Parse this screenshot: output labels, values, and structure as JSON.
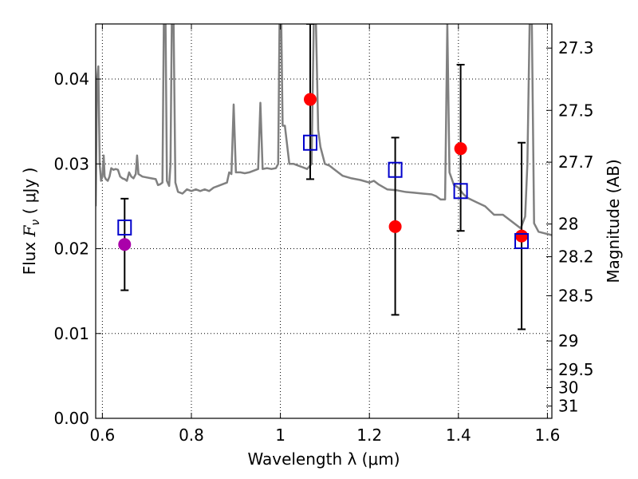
{
  "chart_data": {
    "type": "scatter",
    "xlabel": "Wavelength  λ (μm)",
    "ylabel_left": {
      "pre": "Flux  ",
      "var": "F",
      "sub": "ν",
      "post": "  ( μJy )"
    },
    "ylabel_right": "Magnitude (AB)",
    "xlim": [
      0.585,
      1.61
    ],
    "ylim": [
      0.0,
      0.0465
    ],
    "grid": true,
    "x_ticks": [
      {
        "value": 0.6,
        "label": "0.6"
      },
      {
        "value": 0.8,
        "label": "0.8"
      },
      {
        "value": 1.0,
        "label": "1"
      },
      {
        "value": 1.2,
        "label": "1.2"
      },
      {
        "value": 1.4,
        "label": "1.4"
      },
      {
        "value": 1.6,
        "label": "1.6"
      }
    ],
    "y_ticks": [
      {
        "value": 0.0,
        "label": "0.00"
      },
      {
        "value": 0.01,
        "label": "0.01"
      },
      {
        "value": 0.02,
        "label": "0.02"
      },
      {
        "value": 0.03,
        "label": "0.03"
      },
      {
        "value": 0.04,
        "label": "0.04"
      }
    ],
    "right_ticks": [
      {
        "mag": 27.3,
        "label": "27.3"
      },
      {
        "mag": 27.5,
        "label": "27.5"
      },
      {
        "mag": 27.7,
        "label": "27.7"
      },
      {
        "mag": 28.0,
        "label": "28"
      },
      {
        "mag": 28.2,
        "label": "28.2"
      },
      {
        "mag": 28.5,
        "label": "28.5"
      },
      {
        "mag": 29.0,
        "label": "29"
      },
      {
        "mag": 29.5,
        "label": "29.5"
      },
      {
        "mag": 30.0,
        "label": "30"
      },
      {
        "mag": 31.0,
        "label": "31"
      }
    ],
    "model_spectrum": {
      "color": "#808080",
      "points": [
        [
          0.585,
          0.025
        ],
        [
          0.588,
          0.04
        ],
        [
          0.591,
          0.0415
        ],
        [
          0.594,
          0.03
        ],
        [
          0.597,
          0.028
        ],
        [
          0.6,
          0.0285
        ],
        [
          0.603,
          0.031
        ],
        [
          0.605,
          0.0285
        ],
        [
          0.608,
          0.0282
        ],
        [
          0.612,
          0.028
        ],
        [
          0.616,
          0.0285
        ],
        [
          0.62,
          0.0295
        ],
        [
          0.625,
          0.0293
        ],
        [
          0.63,
          0.0294
        ],
        [
          0.635,
          0.0293
        ],
        [
          0.64,
          0.0285
        ],
        [
          0.645,
          0.0283
        ],
        [
          0.65,
          0.0282
        ],
        [
          0.655,
          0.028
        ],
        [
          0.66,
          0.029
        ],
        [
          0.665,
          0.0285
        ],
        [
          0.67,
          0.0283
        ],
        [
          0.675,
          0.0288
        ],
        [
          0.678,
          0.031
        ],
        [
          0.681,
          0.0288
        ],
        [
          0.69,
          0.0285
        ],
        [
          0.7,
          0.0284
        ],
        [
          0.71,
          0.0283
        ],
        [
          0.72,
          0.0282
        ],
        [
          0.725,
          0.0275
        ],
        [
          0.73,
          0.0276
        ],
        [
          0.735,
          0.0278
        ],
        [
          0.738,
          0.0465
        ],
        [
          0.742,
          0.0465
        ],
        [
          0.745,
          0.028
        ],
        [
          0.75,
          0.0274
        ],
        [
          0.753,
          0.03
        ],
        [
          0.756,
          0.0465
        ],
        [
          0.76,
          0.0465
        ],
        [
          0.764,
          0.0278
        ],
        [
          0.77,
          0.0267
        ],
        [
          0.78,
          0.0265
        ],
        [
          0.79,
          0.027
        ],
        [
          0.8,
          0.0268
        ],
        [
          0.81,
          0.027
        ],
        [
          0.82,
          0.0268
        ],
        [
          0.83,
          0.027
        ],
        [
          0.84,
          0.0268
        ],
        [
          0.85,
          0.0272
        ],
        [
          0.86,
          0.0274
        ],
        [
          0.87,
          0.0276
        ],
        [
          0.88,
          0.0278
        ],
        [
          0.885,
          0.029
        ],
        [
          0.89,
          0.0288
        ],
        [
          0.895,
          0.037
        ],
        [
          0.9,
          0.029
        ],
        [
          0.91,
          0.029
        ],
        [
          0.92,
          0.0289
        ],
        [
          0.93,
          0.029
        ],
        [
          0.94,
          0.0292
        ],
        [
          0.95,
          0.0294
        ],
        [
          0.955,
          0.0372
        ],
        [
          0.96,
          0.0294
        ],
        [
          0.97,
          0.0295
        ],
        [
          0.98,
          0.0294
        ],
        [
          0.99,
          0.0295
        ],
        [
          0.995,
          0.03
        ],
        [
          0.998,
          0.0465
        ],
        [
          1.002,
          0.0465
        ],
        [
          1.005,
          0.0345
        ],
        [
          1.01,
          0.0345
        ],
        [
          1.02,
          0.03
        ],
        [
          1.03,
          0.03
        ],
        [
          1.04,
          0.0298
        ],
        [
          1.05,
          0.0296
        ],
        [
          1.06,
          0.0294
        ],
        [
          1.07,
          0.03
        ],
        [
          1.075,
          0.0465
        ],
        [
          1.08,
          0.0465
        ],
        [
          1.085,
          0.034
        ],
        [
          1.09,
          0.032
        ],
        [
          1.1,
          0.03
        ],
        [
          1.11,
          0.0298
        ],
        [
          1.12,
          0.0294
        ],
        [
          1.14,
          0.0286
        ],
        [
          1.16,
          0.0283
        ],
        [
          1.18,
          0.0281
        ],
        [
          1.2,
          0.0278
        ],
        [
          1.21,
          0.028
        ],
        [
          1.22,
          0.0276
        ],
        [
          1.24,
          0.027
        ],
        [
          1.26,
          0.0269
        ],
        [
          1.28,
          0.0267
        ],
        [
          1.3,
          0.0266
        ],
        [
          1.32,
          0.0265
        ],
        [
          1.34,
          0.0264
        ],
        [
          1.35,
          0.0262
        ],
        [
          1.36,
          0.0258
        ],
        [
          1.37,
          0.0258
        ],
        [
          1.375,
          0.0465
        ],
        [
          1.38,
          0.029
        ],
        [
          1.39,
          0.0275
        ],
        [
          1.4,
          0.0272
        ],
        [
          1.41,
          0.0265
        ],
        [
          1.42,
          0.026
        ],
        [
          1.44,
          0.0255
        ],
        [
          1.46,
          0.025
        ],
        [
          1.48,
          0.024
        ],
        [
          1.5,
          0.024
        ],
        [
          1.52,
          0.0232
        ],
        [
          1.54,
          0.0224
        ],
        [
          1.55,
          0.0238
        ],
        [
          1.555,
          0.03
        ],
        [
          1.56,
          0.0465
        ],
        [
          1.565,
          0.0465
        ],
        [
          1.57,
          0.023
        ],
        [
          1.58,
          0.022
        ],
        [
          1.595,
          0.0218
        ],
        [
          1.61,
          0.0216
        ]
      ]
    },
    "errorbars": [
      {
        "x": 0.65,
        "low": 0.0151,
        "high": 0.0259
      },
      {
        "x": 1.067,
        "low": 0.0282,
        "high": 0.0465
      },
      {
        "x": 1.258,
        "low": 0.0122,
        "high": 0.0331
      },
      {
        "x": 1.405,
        "low": 0.0221,
        "high": 0.0417
      },
      {
        "x": 1.542,
        "low": 0.0105,
        "high": 0.0325
      }
    ],
    "observed_red": {
      "color": "#ff0000",
      "points": [
        {
          "x": 1.067,
          "y": 0.0376
        },
        {
          "x": 1.258,
          "y": 0.0226
        },
        {
          "x": 1.405,
          "y": 0.0318
        },
        {
          "x": 1.542,
          "y": 0.0215
        }
      ]
    },
    "observed_purple": {
      "color": "#aa00aa",
      "points": [
        {
          "x": 0.65,
          "y": 0.0205
        }
      ]
    },
    "model_squares": {
      "color": "#0000cc",
      "points": [
        {
          "x": 0.65,
          "y": 0.0225
        },
        {
          "x": 1.067,
          "y": 0.0325
        },
        {
          "x": 1.258,
          "y": 0.0293
        },
        {
          "x": 1.405,
          "y": 0.0268
        },
        {
          "x": 1.542,
          "y": 0.0209
        }
      ]
    }
  }
}
